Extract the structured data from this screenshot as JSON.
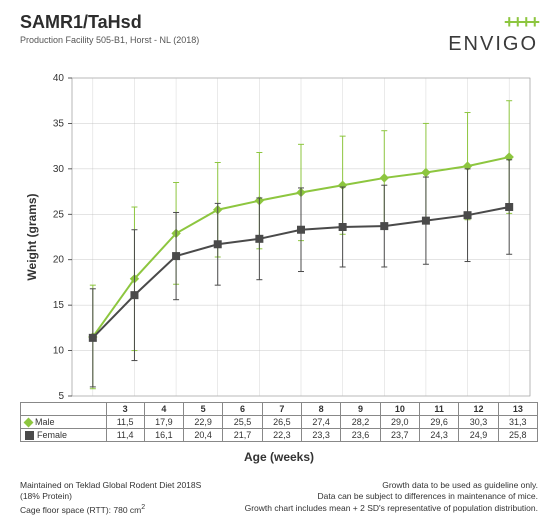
{
  "header": {
    "title": "SAMR1/TaHsd",
    "subtitle": "Production Facility 505-B1, Horst - NL (2018)",
    "logo_text": "ENVIGO",
    "logo_plusses": "++++"
  },
  "chart": {
    "type": "line",
    "ylabel": "Weight (grams)",
    "xlabel": "Age (weeks)",
    "ylim": [
      5,
      40
    ],
    "yticks": [
      5,
      10,
      15,
      20,
      25,
      30,
      35,
      40
    ],
    "xcats": [
      "3",
      "4",
      "5",
      "6",
      "7",
      "8",
      "9",
      "10",
      "11",
      "12",
      "13"
    ],
    "grid_color": "#bbbbbb",
    "bg": "#ffffff",
    "series": [
      {
        "name": "Male",
        "color": "#8dc63f",
        "marker": "diamond",
        "values": [
          11.5,
          17.9,
          22.9,
          25.5,
          26.5,
          27.4,
          28.2,
          29.0,
          29.6,
          30.3,
          31.3
        ],
        "err_hi": [
          17.2,
          25.8,
          28.5,
          30.7,
          31.8,
          32.7,
          33.6,
          34.2,
          35.0,
          36.2,
          37.5
        ],
        "err_lo": [
          5.8,
          10.0,
          17.3,
          20.3,
          21.2,
          22.1,
          22.8,
          23.8,
          24.2,
          24.4,
          25.1
        ]
      },
      {
        "name": "Female",
        "color": "#4a4a4a",
        "marker": "square",
        "values": [
          11.4,
          16.1,
          20.4,
          21.7,
          22.3,
          23.3,
          23.6,
          23.7,
          24.3,
          24.9,
          25.8
        ],
        "err_hi": [
          16.8,
          23.3,
          25.2,
          26.2,
          26.8,
          27.9,
          28.0,
          28.2,
          29.1,
          30.0,
          31.0
        ],
        "err_lo": [
          6.0,
          8.9,
          15.6,
          17.2,
          17.8,
          18.7,
          19.2,
          19.2,
          19.5,
          19.8,
          20.6
        ]
      }
    ]
  },
  "table": {
    "rows": [
      {
        "label": "Male",
        "marker": "diamond",
        "cells": [
          "11,5",
          "17,9",
          "22,9",
          "25,5",
          "26,5",
          "27,4",
          "28,2",
          "29,0",
          "29,6",
          "30,3",
          "31,3"
        ]
      },
      {
        "label": "Female",
        "marker": "square",
        "cells": [
          "11,4",
          "16,1",
          "20,4",
          "21,7",
          "22,3",
          "23,3",
          "23,6",
          "23,7",
          "24,3",
          "24,9",
          "25,8"
        ]
      }
    ]
  },
  "footer": {
    "left": [
      "Maintained on Teklad Global Rodent Diet 2018S",
      "(18% Protein)",
      "Cage floor space (RTT): 780 cm²"
    ],
    "right": [
      "Growth data to be used as guideline only.",
      "Data can be subject to differences in maintenance of mice.",
      "Growth chart includes mean + 2 SD's representative of population distribution."
    ]
  }
}
